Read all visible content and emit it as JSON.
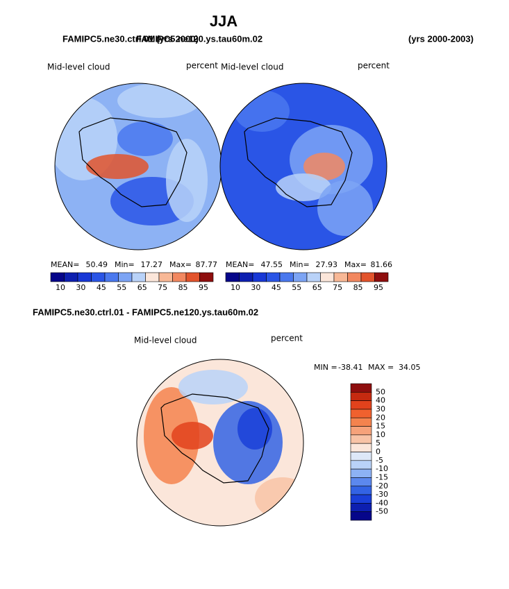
{
  "title": "JJA",
  "subtitle_left": [
    "FAMIPC5.ne30.ctrl.01 (yrs 2000)",
    "FAMIPC5.ne120.ys.tau60m.02"
  ],
  "subtitle_right": "(yrs 2000-2003)",
  "panels": [
    {
      "label": "Mid-level cloud",
      "units": "percent",
      "stats": [
        {
          "label": "MEAN=",
          "value": 50.49
        },
        {
          "label": "Min=",
          "value": 17.27
        },
        {
          "label": "Max=",
          "value": 87.77
        }
      ]
    },
    {
      "label": "Mid-level cloud",
      "units": "percent",
      "stats": [
        {
          "label": "MEAN=",
          "value": 47.55
        },
        {
          "label": "Min=",
          "value": 27.93
        },
        {
          "label": "Max=",
          "value": 81.66
        }
      ]
    }
  ],
  "colorbar": {
    "labels": [
      10,
      30,
      45,
      55,
      65,
      75,
      85,
      95
    ],
    "colors": [
      "#06068a",
      "#0d1fb0",
      "#1838d6",
      "#2a55e6",
      "#4a78ee",
      "#7ca4f4",
      "#b9d2f8",
      "#fbe6da",
      "#f8b896",
      "#f28860",
      "#e2542c",
      "#8e0e0e"
    ]
  },
  "difference": {
    "title": "FAMIPC5.ne30.ctrl.01 - FAMIPC5.ne120.ys.tau60m.02",
    "label": "Mid-level cloud",
    "units": "percent",
    "min_label": "MIN =",
    "min": -38.41,
    "max_label": "MAX =",
    "max": 34.05,
    "colorbar": {
      "labels": [
        50,
        40,
        30,
        20,
        15,
        10,
        5,
        0,
        -5,
        -10,
        -15,
        -20,
        -30,
        -40,
        -50
      ],
      "colors": [
        "#8e0e0e",
        "#c52a10",
        "#e2421c",
        "#f0612e",
        "#f4834e",
        "#f6a27a",
        "#f8c3a6",
        "#fbe6da",
        "#dde8f8",
        "#b9d2f8",
        "#8db2f4",
        "#5c88ee",
        "#3363e4",
        "#1a3fd8",
        "#0d1fb0",
        "#06068a"
      ]
    }
  }
}
